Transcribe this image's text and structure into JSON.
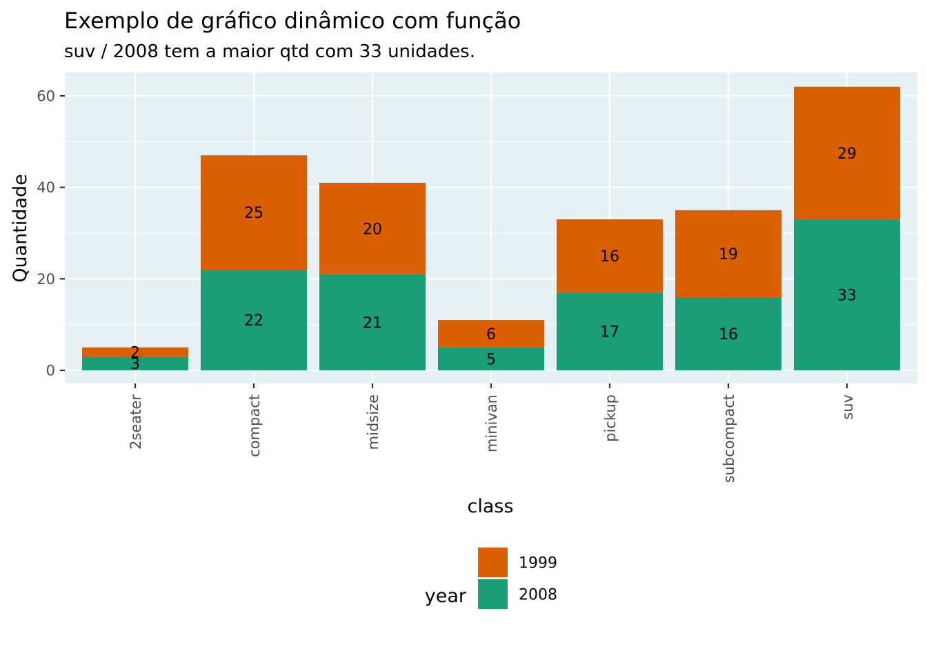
{
  "chart_data": {
    "type": "bar",
    "stacked": true,
    "title": "Exemplo de gráfico dinâmico com função",
    "subtitle": "suv / 2008 tem a maior qtd com 33 unidades.",
    "xlabel": "class",
    "ylabel": "Quantidade",
    "categories": [
      "2seater",
      "compact",
      "midsize",
      "minivan",
      "pickup",
      "subcompact",
      "suv"
    ],
    "series": [
      {
        "name": "2008",
        "color": "#1b9e77",
        "values": [
          3,
          22,
          21,
          5,
          17,
          16,
          33
        ]
      },
      {
        "name": "1999",
        "color": "#d95f02",
        "values": [
          2,
          25,
          20,
          6,
          16,
          19,
          29
        ]
      }
    ],
    "ylim": [
      0,
      65
    ],
    "yticks": [
      0,
      20,
      40,
      60
    ],
    "grid": true,
    "panel_background": "#e5f1f5",
    "legend": {
      "title": "year",
      "position": "bottom",
      "entries": [
        "1999",
        "2008"
      ]
    }
  }
}
